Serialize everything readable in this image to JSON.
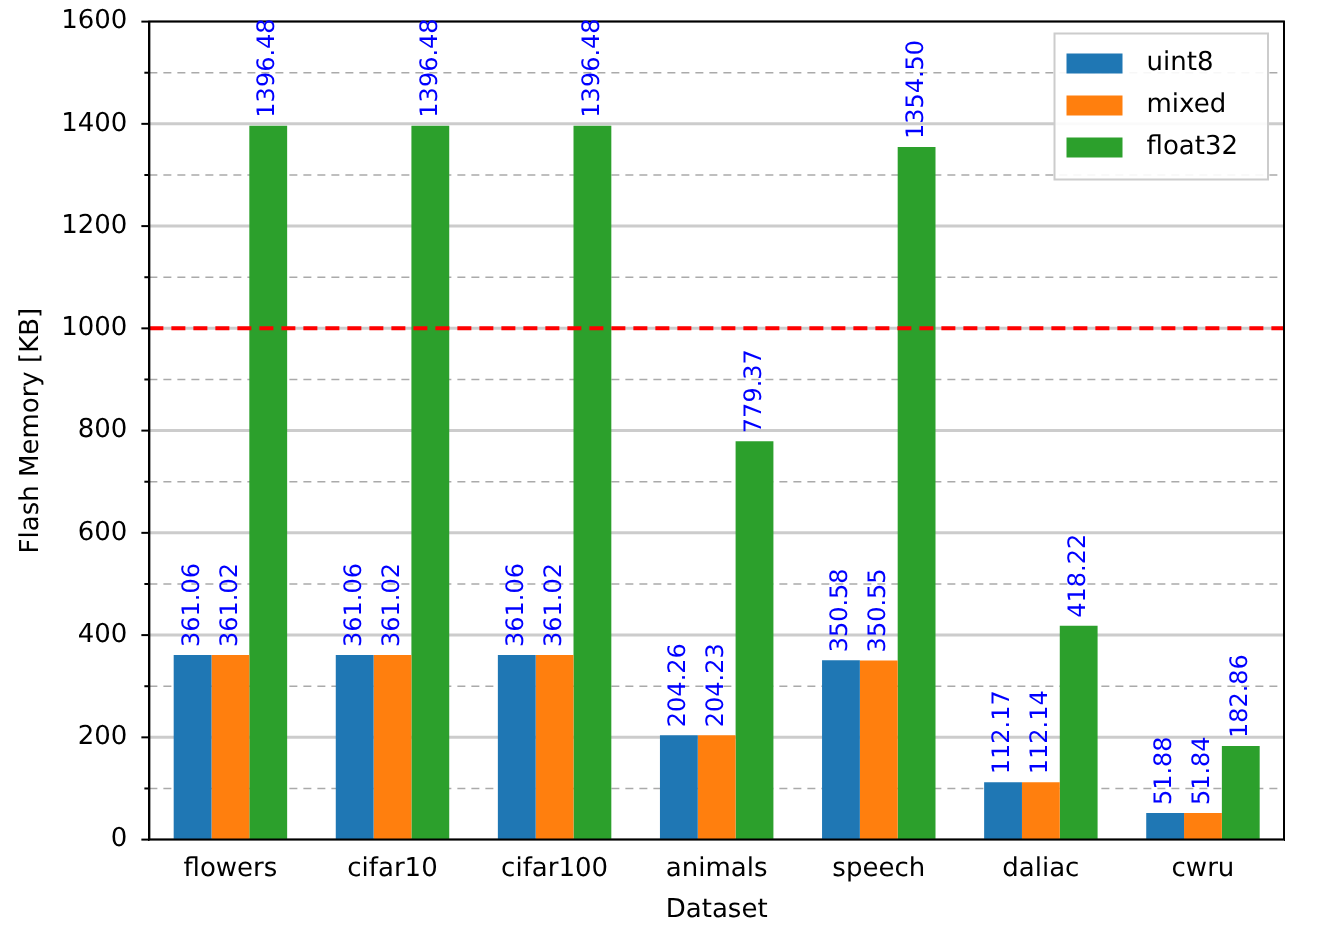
{
  "chart_data": {
    "type": "bar",
    "xlabel": "Dataset",
    "ylabel": "Flash Memory [KB]",
    "categories": [
      "flowers",
      "cifar10",
      "cifar100",
      "animals",
      "speech",
      "daliac",
      "cwru"
    ],
    "series": [
      {
        "name": "uint8",
        "color": "#1f77b4",
        "values": [
          361.06,
          361.06,
          361.06,
          204.26,
          350.58,
          112.17,
          51.88
        ],
        "value_labels": [
          "361.06",
          "361.06",
          "361.06",
          "204.26",
          "350.58",
          "112.17",
          "51.88"
        ]
      },
      {
        "name": "mixed",
        "color": "#ff7f0e",
        "values": [
          361.02,
          361.02,
          361.02,
          204.23,
          350.55,
          112.14,
          51.84
        ],
        "value_labels": [
          "361.02",
          "361.02",
          "361.02",
          "204.23",
          "350.55",
          "112.14",
          "51.84"
        ]
      },
      {
        "name": "float32",
        "color": "#2ca02c",
        "values": [
          1396.48,
          1396.48,
          1396.48,
          779.37,
          1354.5,
          418.22,
          182.86
        ],
        "value_labels": [
          "1396.48",
          "1396.48",
          "1396.48",
          "779.37",
          "1354.50",
          "418.22",
          "182.86"
        ]
      }
    ],
    "ylim": [
      0,
      1600
    ],
    "yticks": [
      0,
      {
        "value": 100,
        "label": null
      },
      200,
      {
        "value": 300,
        "label": null
      },
      400,
      {
        "value": 500,
        "label": null
      },
      600,
      {
        "value": 700,
        "label": null
      },
      800,
      {
        "value": 900,
        "label": null
      },
      1000,
      {
        "value": 1100,
        "label": null
      },
      1200,
      {
        "value": 1300,
        "label": null
      },
      1400,
      {
        "value": 1500,
        "label": null
      },
      1600
    ],
    "ref_lines": [
      {
        "axis": "y",
        "value": 1000,
        "color": "#ff0000",
        "line_style": "dashed"
      }
    ],
    "grid": true,
    "legend": "top right"
  }
}
